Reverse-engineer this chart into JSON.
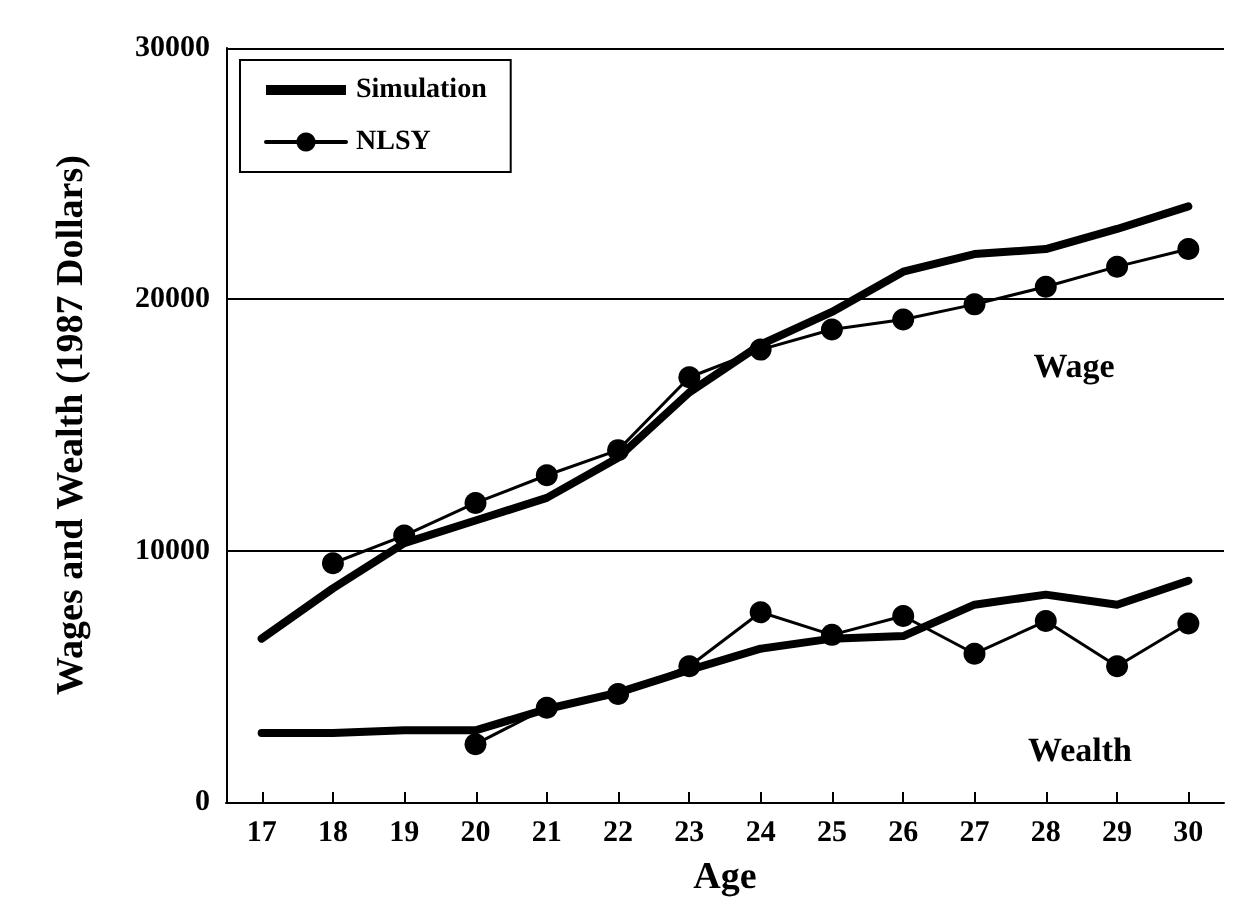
{
  "chart_data": {
    "type": "line",
    "xlabel": "Age",
    "ylabel": "Wages and Wealth (1987 Dollars)",
    "xlim": [
      16.5,
      30.5
    ],
    "xticks": [
      17,
      18,
      19,
      20,
      21,
      22,
      23,
      24,
      25,
      26,
      27,
      28,
      29,
      30
    ],
    "ylim": [
      0,
      30000
    ],
    "yticks": [
      0,
      10000,
      20000,
      30000
    ],
    "grid": "y",
    "legend": "top left",
    "line_style": "solid",
    "series": [
      {
        "name": "Simulation",
        "color": "#000000",
        "marker": "none",
        "x": [
          17,
          18,
          19,
          20,
          21,
          22,
          23,
          24,
          25,
          26,
          27,
          28,
          29,
          30
        ],
        "values": [
          6500,
          8500,
          10300,
          11200,
          12100,
          13700,
          16300,
          18200,
          19500,
          21100,
          21800,
          22000,
          22800,
          23700
        ]
      },
      {
        "name": "NLSY",
        "color": "#000000",
        "marker": "circle",
        "x": [
          18,
          19,
          20,
          21,
          22,
          23,
          24,
          25,
          26,
          27,
          28,
          29,
          30
        ],
        "values": [
          9500,
          10600,
          11900,
          13000,
          14000,
          16900,
          18000,
          18800,
          19200,
          19800,
          20500,
          21300,
          22000
        ]
      },
      {
        "color": "#000000",
        "marker": "none",
        "x": [
          17,
          18,
          19,
          20,
          21,
          22,
          23,
          24,
          25,
          26,
          27,
          28,
          29,
          30
        ],
        "values": [
          2750,
          2750,
          2850,
          2850,
          3700,
          4350,
          5250,
          6100,
          6500,
          6600,
          7850,
          8250,
          7850,
          8800
        ]
      },
      {
        "color": "#000000",
        "marker": "circle",
        "x": [
          20,
          21,
          22,
          23,
          24,
          25,
          26,
          27,
          28,
          29,
          30
        ],
        "values": [
          2300,
          3750,
          4300,
          5400,
          7550,
          6650,
          7400,
          5900,
          7200,
          5400,
          7100
        ]
      }
    ],
    "annotations": [
      "Wage",
      "Wealth"
    ]
  }
}
